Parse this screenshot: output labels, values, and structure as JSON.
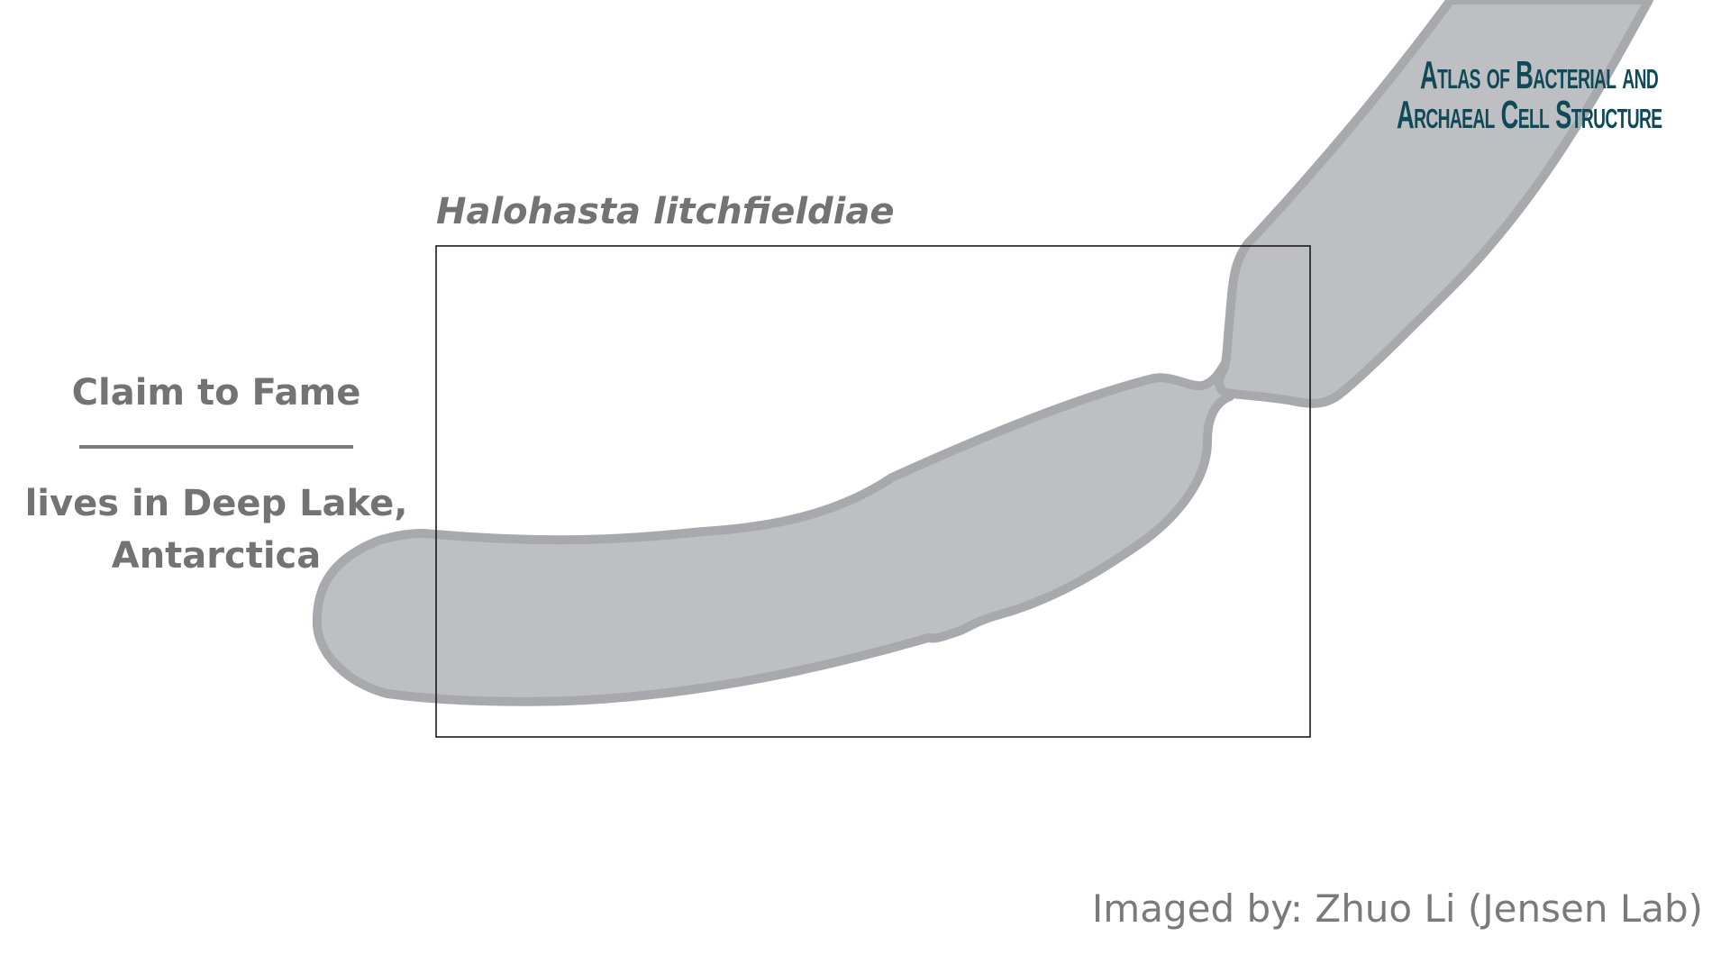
{
  "title": "Halohasta litchfieldiae",
  "claim": {
    "heading": "Claim to Fame",
    "text": "lives in Deep Lake, Antarctica"
  },
  "credit": "Imaged by: Zhuo Li (Jensen Lab)",
  "logo": {
    "line1": "Atlas of Bacterial and",
    "line2": "Archaeal Cell Structure"
  },
  "colors": {
    "cell_fill": "#bebfc2",
    "cell_outline": "#a8a9ac",
    "text_gray": "#737373",
    "logo_teal": "#0e4a57"
  }
}
